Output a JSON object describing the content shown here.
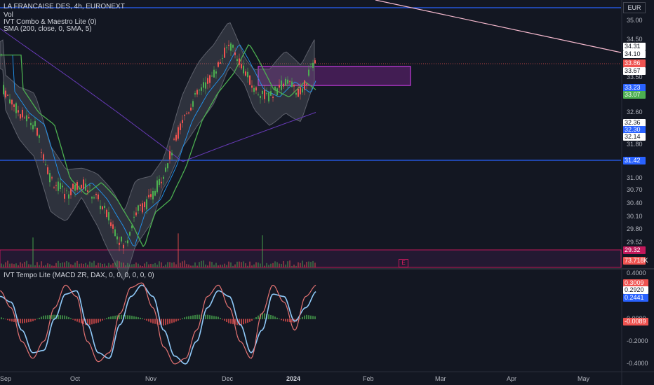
{
  "header": {
    "symbol": "LA FRANCAISE DES, 4h, EURONEXT",
    "ind1": "Vol",
    "ind2": "IVT Combo & Maestro Lite (0)",
    "ind3": "SMA (200, close, 0, SMA, 5)",
    "osc": "IVT Tempo Lite (MACD ZR, DAX, 0, 0, 0, 0, 0, 0)"
  },
  "currency": "EUR",
  "colors": {
    "bg": "#131722",
    "up": "#4caf50",
    "down": "#ef5350",
    "hline": "#2962ff",
    "zone": "#9c27b0",
    "band": "#787b86",
    "sma_fast": "#4caf50",
    "sma_mid": "#2196f3",
    "sma200": "#673ab7",
    "trend": "#f8bbd0"
  },
  "chart_data": [
    {
      "type": "candlestick",
      "title": "LA FRANCAISE DES, 4h, EURONEXT",
      "x_range": [
        "2023-09-01",
        "2024-05-20"
      ],
      "y_ticks": [
        35.0,
        34.5,
        33.5,
        32.6,
        31.8,
        31.0,
        30.7,
        30.4,
        30.1,
        29.8,
        29.52
      ],
      "ylim": [
        28.9,
        35.6
      ],
      "x_ticks": [
        "Sep",
        "Oct",
        "Nov",
        "Dec",
        "2024",
        "Feb",
        "Mar",
        "Apr",
        "May"
      ],
      "close_path": [
        [
          "2023-09-01",
          33.2
        ],
        [
          "2023-09-08",
          32.6
        ],
        [
          "2023-09-15",
          32.3
        ],
        [
          "2023-09-22",
          31.0
        ],
        [
          "2023-09-29",
          30.6
        ],
        [
          "2023-10-06",
          30.9
        ],
        [
          "2023-10-13",
          30.5
        ],
        [
          "2023-10-20",
          29.9
        ],
        [
          "2023-10-25",
          29.4
        ],
        [
          "2023-10-30",
          30.2
        ],
        [
          "2023-11-06",
          30.5
        ],
        [
          "2023-11-13",
          31.3
        ],
        [
          "2023-11-20",
          32.4
        ],
        [
          "2023-11-27",
          33.1
        ],
        [
          "2023-12-04",
          33.6
        ],
        [
          "2023-12-11",
          34.4
        ],
        [
          "2023-12-15",
          34.0
        ],
        [
          "2023-12-22",
          33.2
        ],
        [
          "2023-12-29",
          33.0
        ],
        [
          "2024-01-05",
          33.4
        ],
        [
          "2024-01-12",
          33.1
        ],
        [
          "2024-01-19",
          34.1
        ]
      ],
      "volume_last": "73.718K",
      "horizontal_lines": [
        35.2,
        31.42
      ],
      "resistance_zone": {
        "top": 33.8,
        "bottom": 33.3,
        "from": "2023-12-15",
        "to": "2024-02-01"
      },
      "support_box": {
        "top": 29.4,
        "bottom": 28.9
      },
      "price_labels": [
        {
          "value": "34.31",
          "type": "plain"
        },
        {
          "value": "34.10",
          "type": "plain"
        },
        {
          "value": "33.86",
          "type": "last"
        },
        {
          "value": "33.67",
          "type": "plain"
        },
        {
          "value": "33.23",
          "type": "blue"
        },
        {
          "value": "33.07",
          "type": "green"
        },
        {
          "value": "32.36",
          "type": "plain"
        },
        {
          "value": "32.30",
          "type": "blue"
        },
        {
          "value": "32.14",
          "type": "plain"
        },
        {
          "value": "31.42",
          "type": "hline"
        },
        {
          "value": "29.32",
          "type": "zone"
        },
        {
          "value": "73.718K",
          "type": "vol"
        }
      ],
      "earnings_marker": "E"
    },
    {
      "type": "line",
      "title": "IVT Tempo Lite (MACD ZR, DAX, 0, 0, 0, 0, 0, 0)",
      "y_ticks": [
        0.4,
        0.0,
        -0.2,
        -0.4
      ],
      "ylim": [
        -0.45,
        0.42
      ],
      "series": [
        {
          "name": "",
          "values": [
            0.25,
            0.1,
            -0.2,
            -0.35,
            -0.2,
            0.1,
            0.3,
            0.2,
            -0.2,
            -0.38,
            -0.3,
            0.05,
            0.28,
            0.32,
            0.1,
            -0.25,
            -0.4,
            -0.35,
            -0.1,
            0.2,
            0.3,
            0.1,
            -0.2,
            -0.35,
            0.05,
            0.3,
            0.15,
            -0.1,
            0.2,
            0.3009
          ]
        },
        {
          "name": "",
          "values": [
            0.2,
            0.15,
            -0.1,
            -0.3,
            -0.28,
            0.0,
            0.22,
            0.25,
            -0.05,
            -0.3,
            -0.35,
            -0.05,
            0.2,
            0.3,
            0.2,
            -0.1,
            -0.33,
            -0.4,
            -0.2,
            0.1,
            0.25,
            0.2,
            -0.05,
            -0.3,
            -0.1,
            0.22,
            0.2,
            -0.02,
            0.1,
            0.2441
          ]
        }
      ],
      "value_labels": [
        {
          "value": "0.3009",
          "type": "red"
        },
        {
          "value": "0.2920",
          "type": "plain"
        },
        {
          "value": "0.2441",
          "type": "blue"
        },
        {
          "value": "-0.0089",
          "type": "red"
        }
      ]
    }
  ]
}
